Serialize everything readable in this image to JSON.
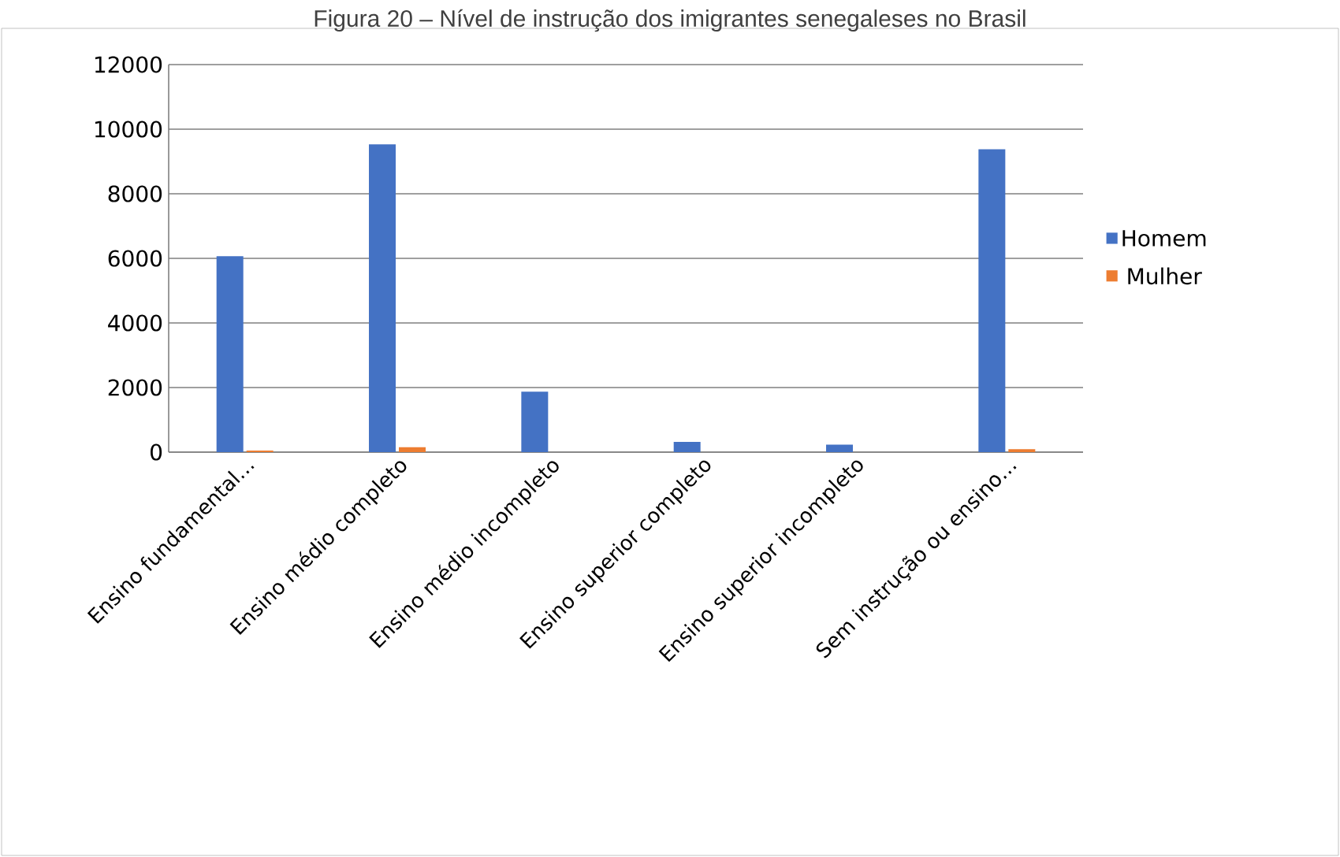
{
  "chart_data": {
    "type": "bar",
    "title": "Figura 20 – Nível de instrução dos imigrantes senegaleses no Brasil",
    "categories": [
      "Ensino fundamental…",
      "Ensino médio completo",
      "Ensino médio incompleto",
      "Ensino superior completo",
      "Ensino superior incompleto",
      "Sem instrução ou ensino…"
    ],
    "series": [
      {
        "name": "Homem",
        "color": "#4472c4",
        "values": [
          6070,
          9530,
          1870,
          320,
          230,
          9380
        ]
      },
      {
        "name": "Mulher",
        "color": "#ed7d31",
        "values": [
          50,
          150,
          null,
          null,
          0,
          90
        ]
      }
    ],
    "ylim": [
      0,
      12000
    ],
    "yticks": [
      0,
      2000,
      4000,
      6000,
      8000,
      10000,
      12000
    ],
    "grid": "y",
    "legend": "right"
  }
}
